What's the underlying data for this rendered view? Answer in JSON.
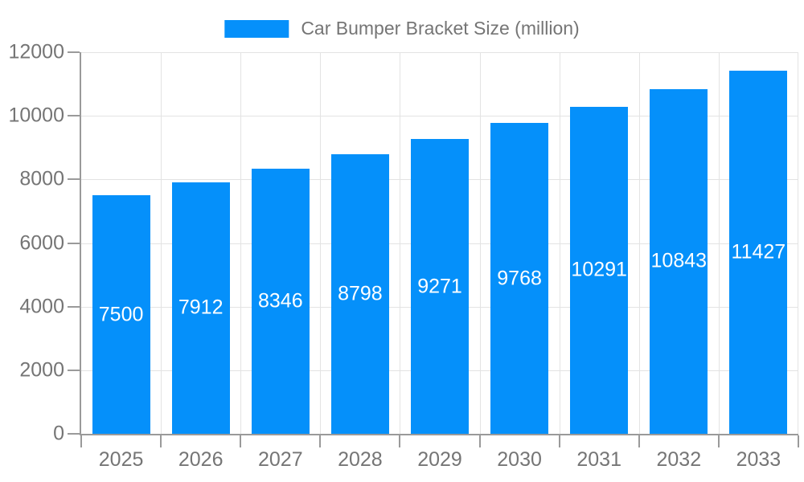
{
  "chart_data": {
    "type": "bar",
    "title": "Car Bumper Bracket Size (million)",
    "categories": [
      "2025",
      "2026",
      "2027",
      "2028",
      "2029",
      "2030",
      "2031",
      "2032",
      "2033"
    ],
    "values": [
      7500,
      7912,
      8346,
      8798,
      9271,
      9768,
      10291,
      10843,
      11427
    ],
    "xlabel": "",
    "ylabel": "",
    "ylim": [
      0,
      12000
    ],
    "yticks": [
      0,
      2000,
      4000,
      6000,
      8000,
      10000,
      12000
    ],
    "grid": true,
    "legend_position": "top-center",
    "colors": {
      "bar": "#0590fa",
      "bar_label": "#ffffff",
      "axis": "#9a9a9a",
      "gridline": "#e3e3e3",
      "text": "#757575",
      "background": "#ffffff"
    }
  }
}
